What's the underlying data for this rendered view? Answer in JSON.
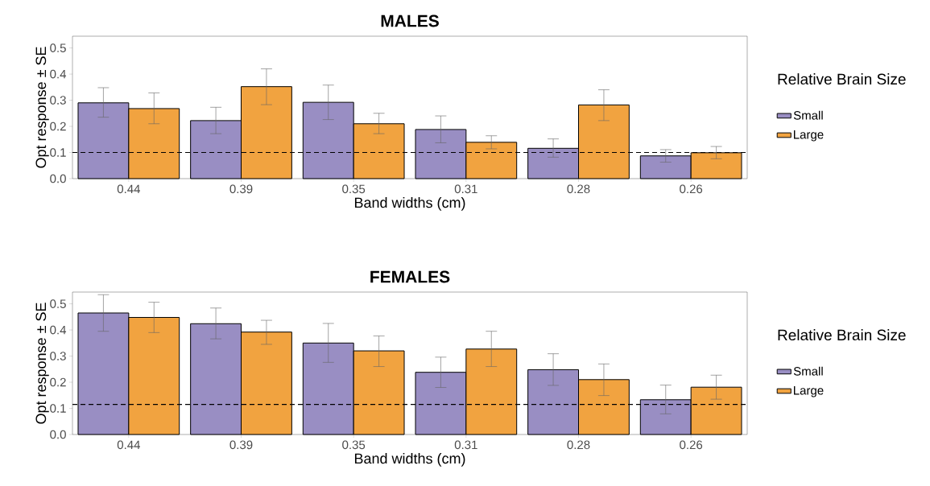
{
  "chart_data": [
    {
      "type": "bar",
      "title": "MALES",
      "xlabel": "Band widths (cm)",
      "ylabel": "Opt response ± SE",
      "legend_title": "Relative Brain Size",
      "legend": "right",
      "categories": [
        "0.44",
        "0.39",
        "0.35",
        "0.31",
        "0.28",
        "0.26"
      ],
      "ylim": [
        0,
        0.545
      ],
      "yticks": [
        {
          "value": 0,
          "label": "0.0"
        },
        0.1,
        0.2,
        0.3,
        0.4,
        0.5
      ],
      "series": [
        {
          "name": "Small",
          "color": "#998ec3",
          "values": [
            0.29,
            0.222,
            0.292,
            0.188,
            0.116,
            0.087
          ],
          "errors": [
            [
              0.235,
              0.348
            ],
            [
              0.172,
              0.273
            ],
            [
              0.226,
              0.358
            ],
            [
              0.137,
              0.24
            ],
            [
              0.082,
              0.152
            ],
            [
              0.063,
              0.111
            ]
          ]
        },
        {
          "name": "Large",
          "color": "#f1a340",
          "values": [
            0.268,
            0.352,
            0.21,
            0.139,
            0.282,
            0.099
          ],
          "errors": [
            [
              0.21,
              0.328
            ],
            [
              0.283,
              0.42
            ],
            [
              0.172,
              0.25
            ],
            [
              0.114,
              0.164
            ],
            [
              0.222,
              0.34
            ],
            [
              0.076,
              0.123
            ]
          ]
        }
      ],
      "ref_lines": [
        {
          "axis": "y",
          "value": 0.1,
          "color": "#000000",
          "line_style": "dashed"
        }
      ]
    },
    {
      "type": "bar",
      "title": "FEMALES",
      "xlabel": "Band widths (cm)",
      "ylabel": "Opt response ± SE",
      "legend_title": "Relative Brain Size",
      "legend": "right",
      "categories": [
        "0.44",
        "0.39",
        "0.35",
        "0.31",
        "0.28",
        "0.26"
      ],
      "ylim": [
        0,
        0.545
      ],
      "yticks": [
        {
          "value": 0,
          "label": "0.0"
        },
        0.1,
        0.2,
        0.3,
        0.4,
        0.5
      ],
      "series": [
        {
          "name": "Small",
          "color": "#998ec3",
          "values": [
            0.465,
            0.424,
            0.35,
            0.238,
            0.248,
            0.133
          ],
          "errors": [
            [
              0.395,
              0.535
            ],
            [
              0.366,
              0.484
            ],
            [
              0.276,
              0.425
            ],
            [
              0.18,
              0.296
            ],
            [
              0.188,
              0.309
            ],
            [
              0.079,
              0.189
            ]
          ]
        },
        {
          "name": "Large",
          "color": "#f1a340",
          "values": [
            0.448,
            0.392,
            0.32,
            0.327,
            0.21,
            0.181
          ],
          "errors": [
            [
              0.39,
              0.506
            ],
            [
              0.345,
              0.437
            ],
            [
              0.26,
              0.377
            ],
            [
              0.26,
              0.395
            ],
            [
              0.149,
              0.27
            ],
            [
              0.135,
              0.227
            ]
          ]
        }
      ],
      "ref_lines": [
        {
          "axis": "y",
          "value": 0.115,
          "color": "#000000",
          "line_style": "dashed"
        }
      ]
    }
  ]
}
